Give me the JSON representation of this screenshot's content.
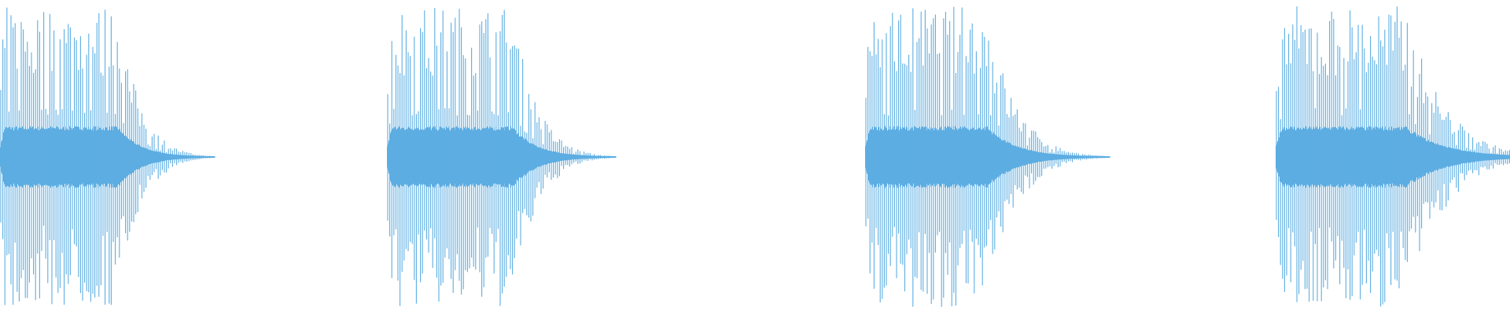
{
  "chart_data": {
    "type": "waveform",
    "title": "",
    "xlabel": "",
    "ylabel": "",
    "ylim": [
      -1,
      1
    ],
    "grid": false,
    "burst_count": 4,
    "series": [
      {
        "color": "#5DADE2"
      }
    ]
  }
}
